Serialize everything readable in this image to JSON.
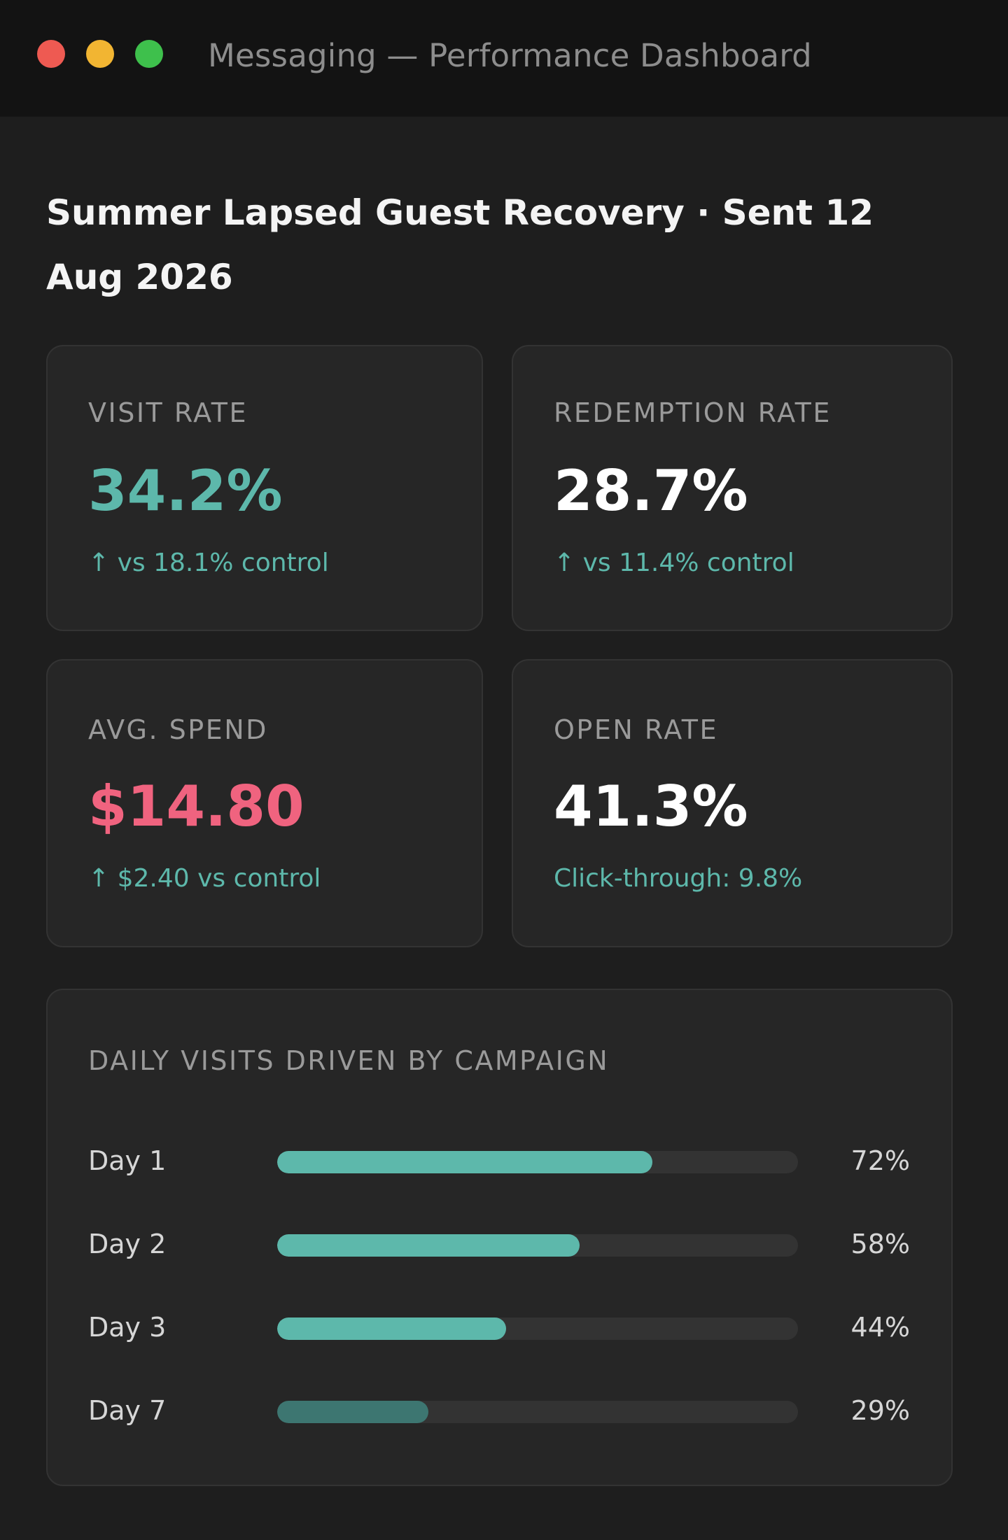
{
  "window": {
    "title": "Messaging — Performance Dashboard"
  },
  "campaign": {
    "title": "Summer Lapsed Guest Recovery · Sent 12 Aug 2026"
  },
  "kpis": [
    {
      "label": "VISIT RATE",
      "value": "34.2%",
      "sub": "↑ vs 18.1% control",
      "value_color": "#5db8ab",
      "sub_color": "#5db8ab"
    },
    {
      "label": "REDEMPTION RATE",
      "value": "28.7%",
      "sub": "↑ vs 11.4% control",
      "value_color": "#ffffff",
      "sub_color": "#5db8ab"
    },
    {
      "label": "AVG. SPEND",
      "value": "$14.80",
      "sub": "↑ $2.40 vs control",
      "value_color": "#f0637f",
      "sub_color": "#5db8ab"
    },
    {
      "label": "OPEN RATE",
      "value": "41.3%",
      "sub": "Click-through: 9.8%",
      "value_color": "#ffffff",
      "sub_color": "#5db8ab"
    }
  ],
  "chart_data": {
    "type": "bar",
    "title": "DAILY VISITS DRIVEN BY CAMPAIGN",
    "categories": [
      "Day 1",
      "Day 2",
      "Day 3",
      "Day 7"
    ],
    "values": [
      72,
      58,
      44,
      29
    ],
    "value_labels": [
      "72%",
      "58%",
      "44%",
      "29%"
    ],
    "ylim": [
      0,
      100
    ],
    "colors": [
      "#5db8ab",
      "#5db8ab",
      "#5db8ab",
      "#3d7671"
    ],
    "track_color": "#333333"
  }
}
